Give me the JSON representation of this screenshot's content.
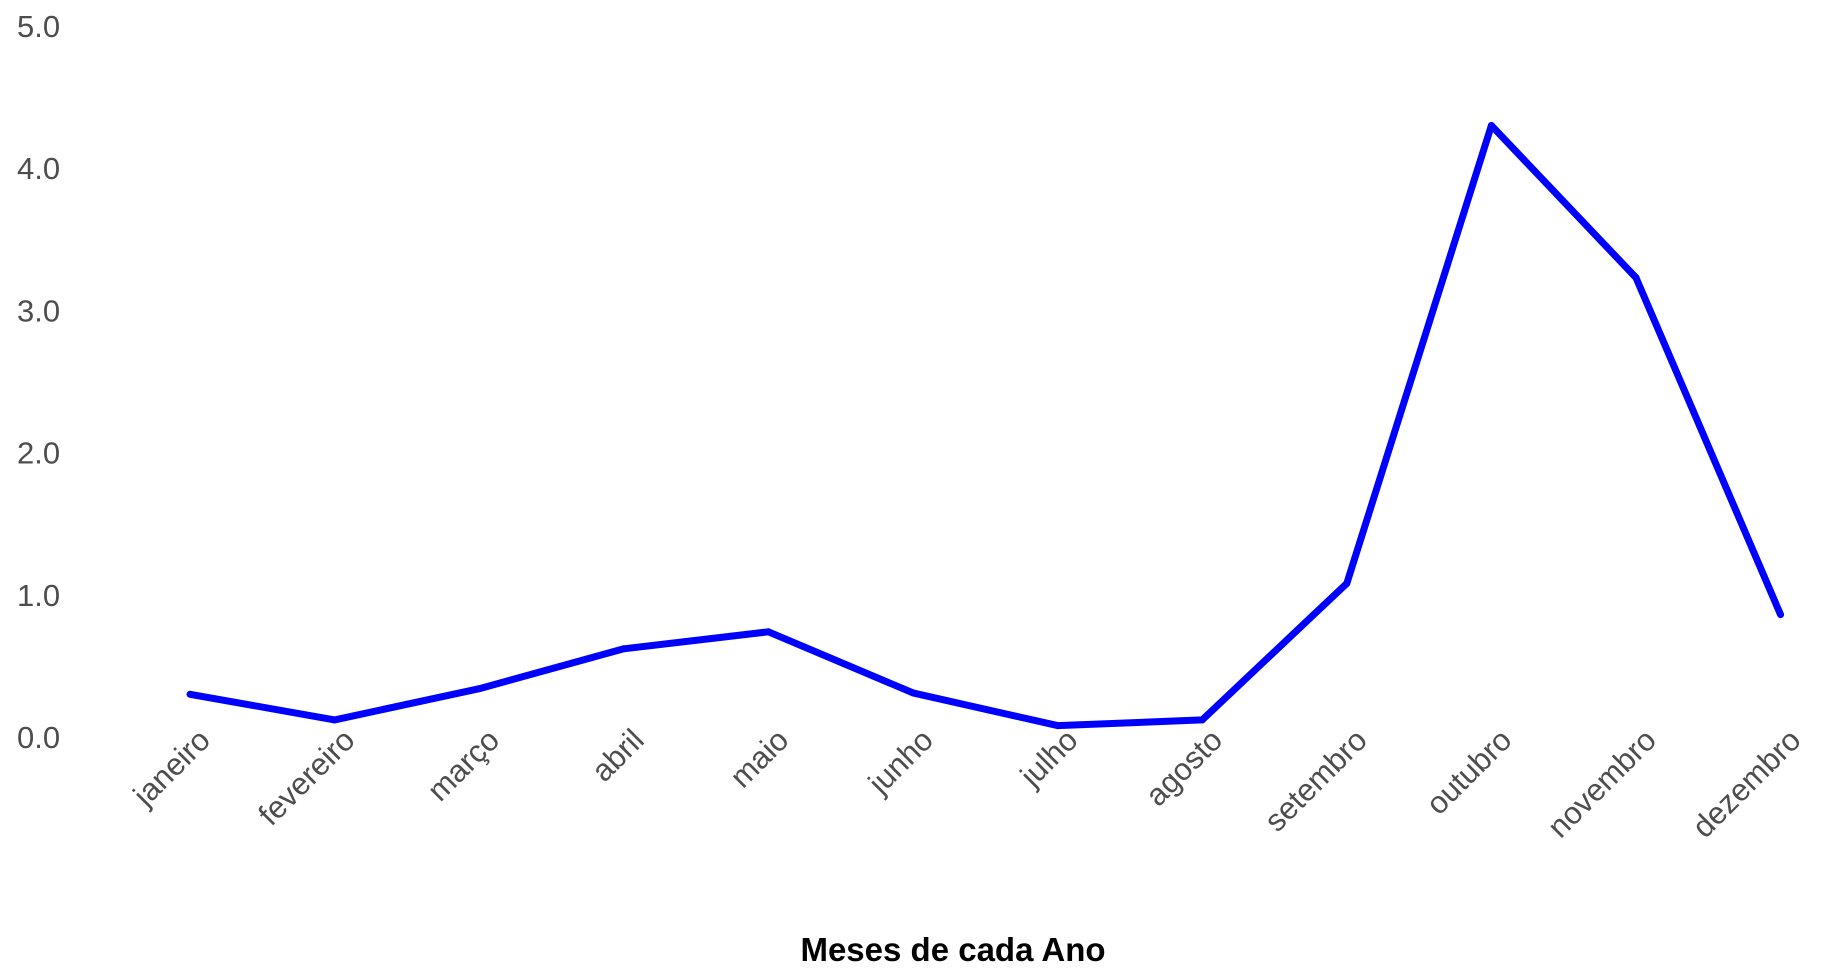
{
  "chart_data": {
    "type": "line",
    "title": "",
    "xlabel": "Meses de cada Ano",
    "ylabel": "",
    "categories": [
      "janeiro",
      "fevereiro",
      "março",
      "abril",
      "maio",
      "junho",
      "julho",
      "agosto",
      "setembro",
      "outubro",
      "novembro",
      "dezembro"
    ],
    "series": [
      {
        "values": [
          0.3,
          0.12,
          0.34,
          0.62,
          0.74,
          0.31,
          0.08,
          0.12,
          1.08,
          4.3,
          3.23,
          0.86
        ],
        "color": "#0000ff"
      }
    ],
    "y_ticks": [
      "0.0",
      "1.0",
      "2.0",
      "3.0",
      "4.0",
      "5.0"
    ],
    "ylim": [
      0,
      5
    ],
    "grid": false,
    "legend": "none"
  }
}
